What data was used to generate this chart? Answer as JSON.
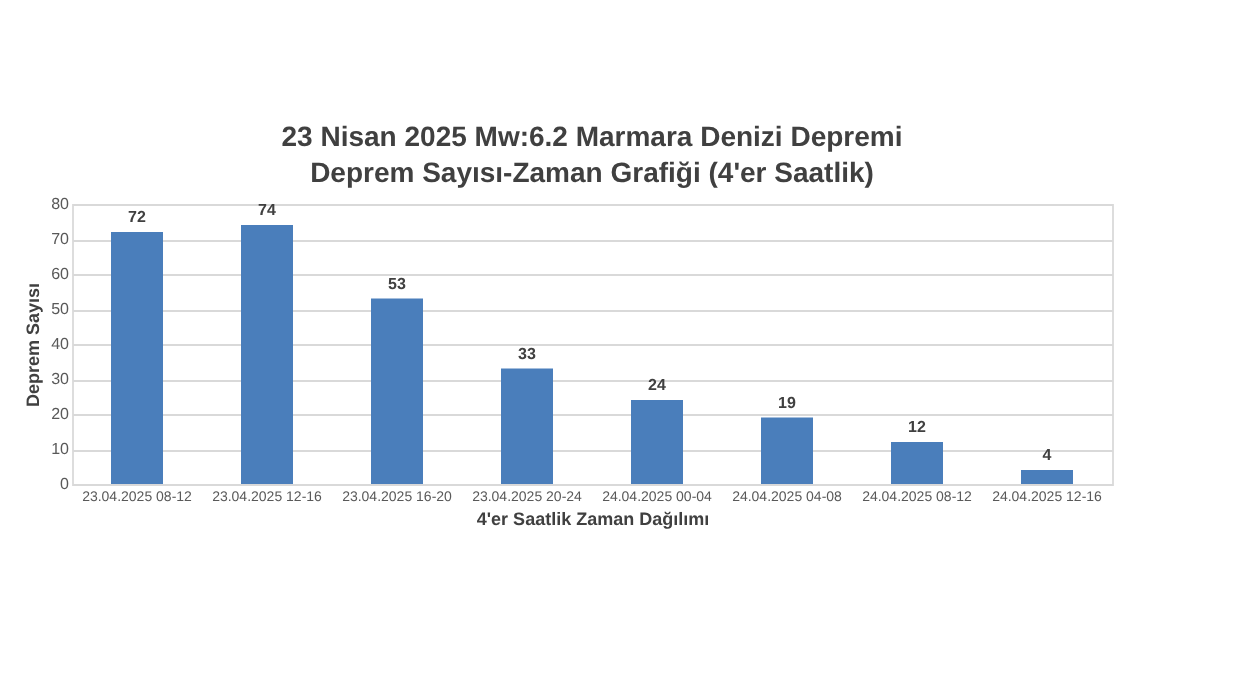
{
  "chart_data": {
    "type": "bar",
    "title": "23 Nisan 2025 Mw:6.2 Marmara Denizi Depremi",
    "subtitle": "Deprem Sayısı-Zaman Grafiği (4'er Saatlik)",
    "xlabel": "4'er Saatlik Zaman Dağılımı",
    "ylabel": "Deprem Sayısı",
    "categories": [
      "23.04.2025 08-12",
      "23.04.2025 12-16",
      "23.04.2025 16-20",
      "23.04.2025 20-24",
      "24.04.2025 00-04",
      "24.04.2025 04-08",
      "24.04.2025 08-12",
      "24.04.2025 12-16"
    ],
    "values": [
      72,
      74,
      53,
      33,
      24,
      19,
      12,
      4
    ],
    "color": "#4a7ebb",
    "ylim": [
      0,
      80
    ],
    "yticks": [
      0,
      10,
      20,
      30,
      40,
      50,
      60,
      70,
      80
    ],
    "grid": "y",
    "data_labels": true
  }
}
